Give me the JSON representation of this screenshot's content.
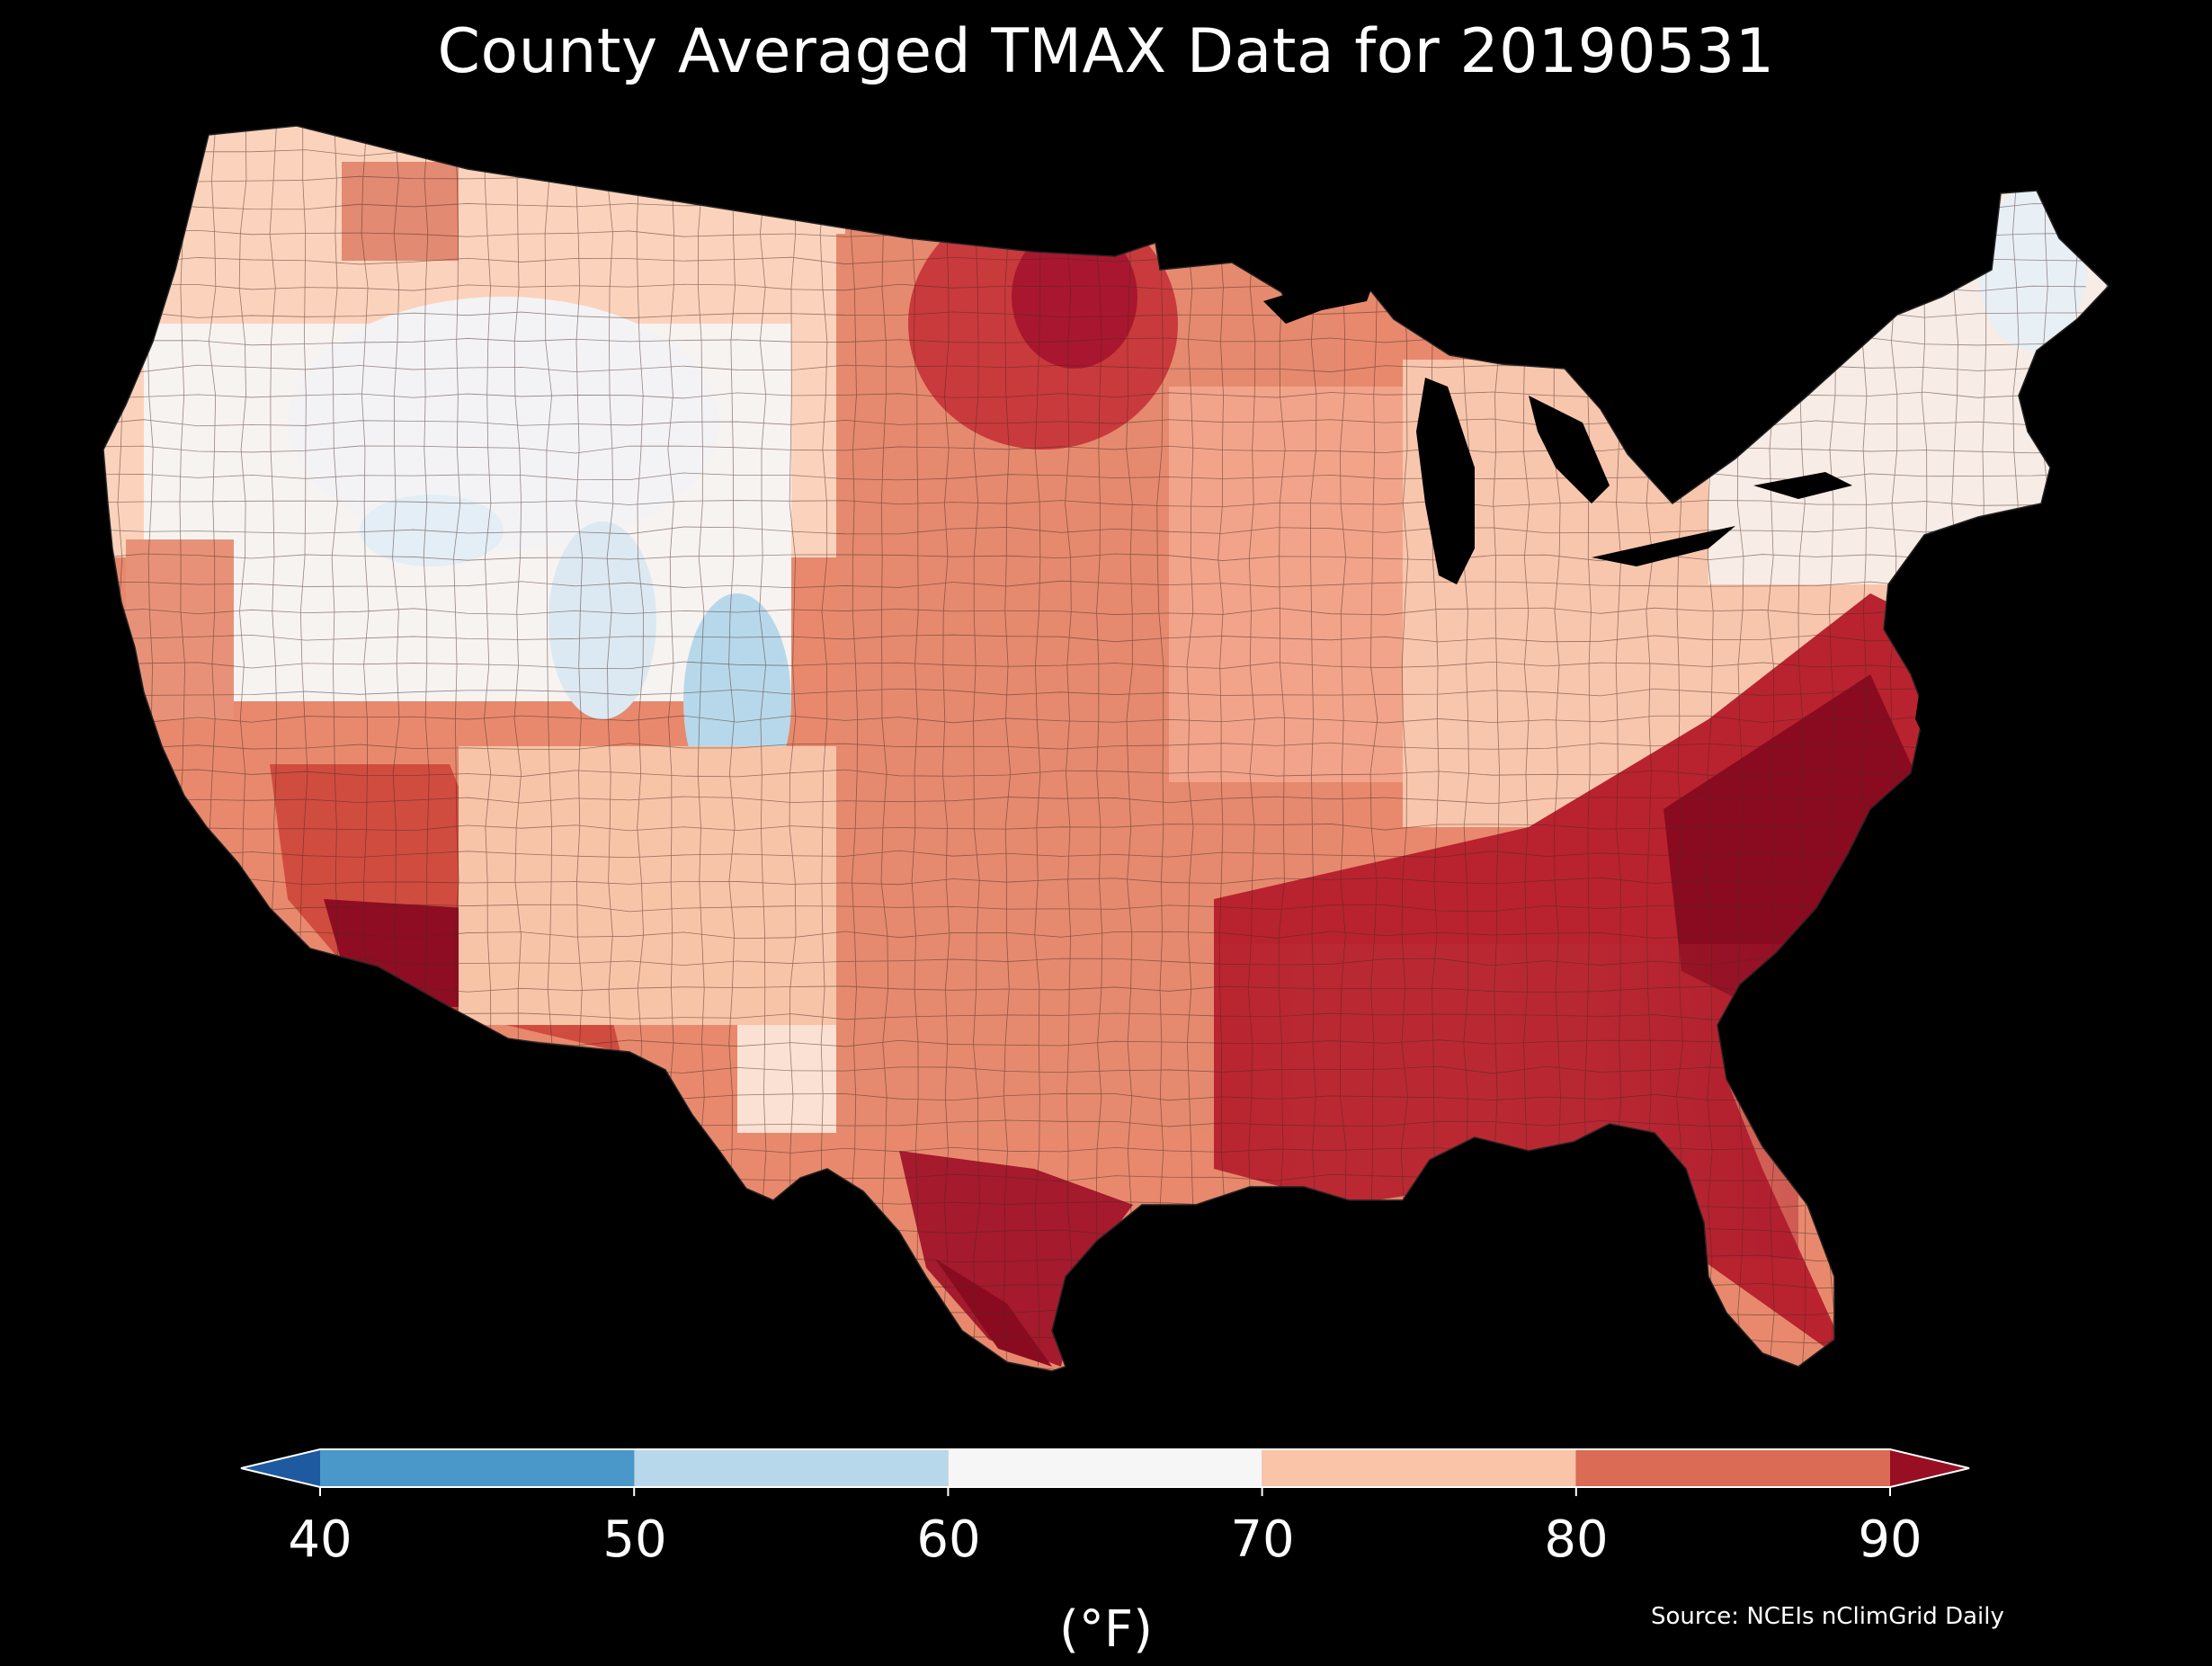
{
  "title": "County Averaged TMAX Data for 20190531",
  "colorbar": {
    "ticks": [
      "40",
      "50",
      "60",
      "70",
      "80",
      "90"
    ],
    "unit": "(°F)",
    "bins": [
      {
        "from": 40,
        "to": 50,
        "color": "#4a98c9"
      },
      {
        "from": 50,
        "to": 60,
        "color": "#b7d8ea"
      },
      {
        "from": 60,
        "to": 70,
        "color": "#f7f6f6"
      },
      {
        "from": 70,
        "to": 80,
        "color": "#f9c4a8"
      },
      {
        "from": 80,
        "to": 90,
        "color": "#db6b55"
      }
    ],
    "under_color": "#1e5aa0",
    "over_color": "#980f24"
  },
  "source": "Source: NCEIs nClimGrid Daily",
  "map": {
    "region": "Contiguous United States",
    "background": "#000000",
    "water_color": "#000000",
    "boundary_color": "#333333"
  }
}
